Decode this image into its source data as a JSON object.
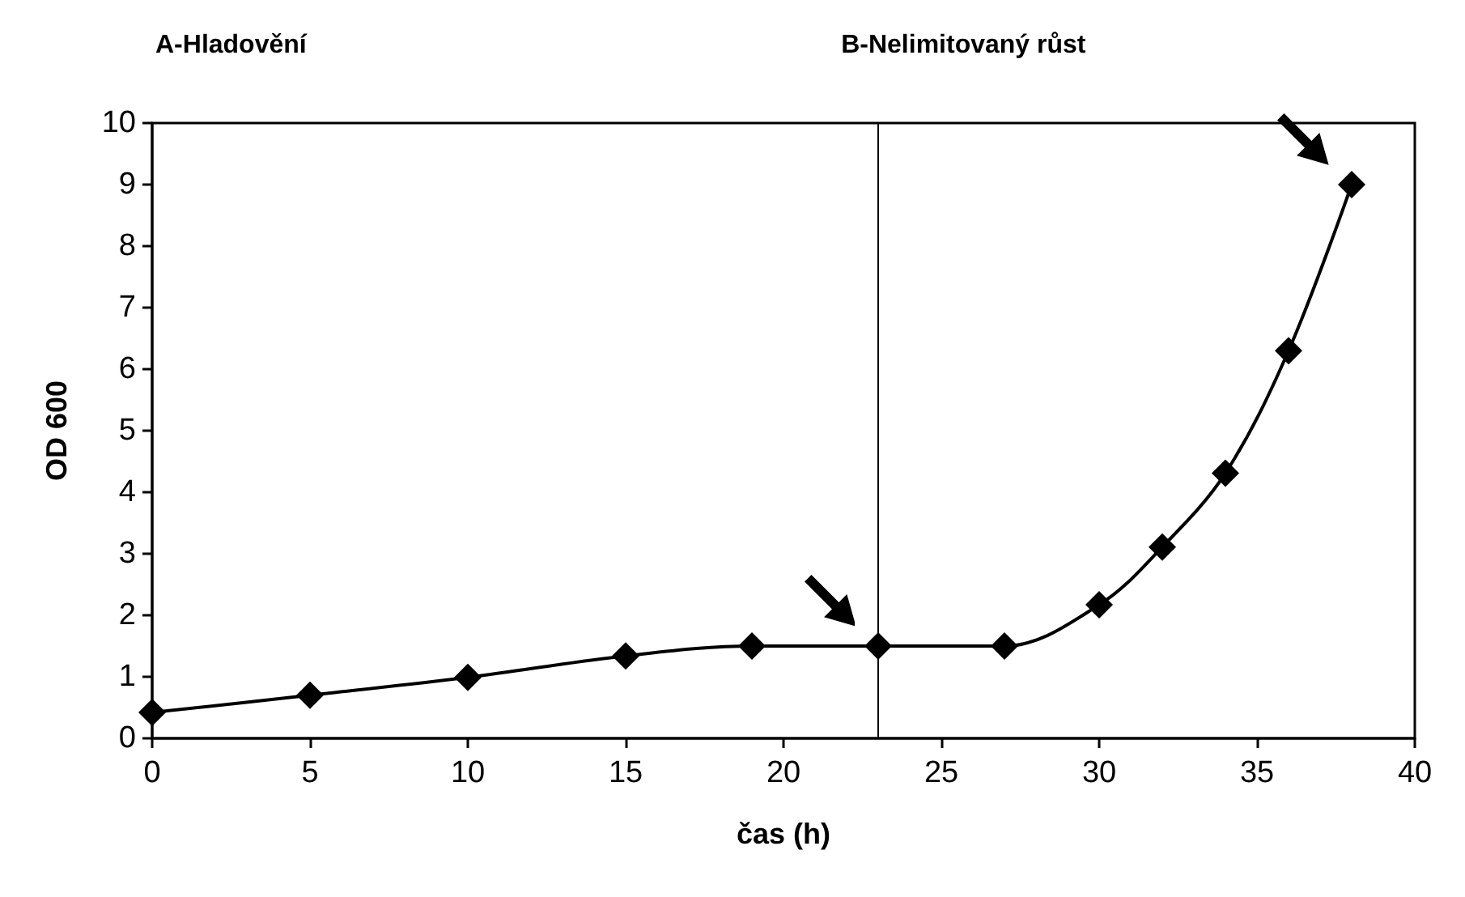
{
  "chart_data": {
    "type": "line",
    "xlabel": "čas (h)",
    "ylabel": "OD 600",
    "annotations": [
      "A-Hladovění",
      "B-Nelimitovaný růst"
    ],
    "x": [
      0,
      5,
      10,
      15,
      19,
      23,
      27,
      30,
      32,
      34,
      36,
      38
    ],
    "series": [
      {
        "color": "#000000",
        "values": [
          0.42,
          0.7,
          0.99,
          1.34,
          1.5,
          1.5,
          1.5,
          2.17,
          3.11,
          4.31,
          6.3,
          9.0
        ]
      }
    ],
    "xlim": [
      0,
      40
    ],
    "xticks": [
      0,
      5,
      10,
      15,
      20,
      25,
      30,
      35,
      40
    ],
    "ylim": [
      0,
      10
    ],
    "yticks": [
      0,
      1,
      2,
      3,
      4,
      5,
      6,
      7,
      8,
      9,
      10
    ],
    "ref_lines": [
      {
        "axis": "x",
        "value": 23,
        "label": null,
        "color": "#000000"
      }
    ],
    "grid": false,
    "marker": "diamond",
    "line_style": "solid"
  }
}
